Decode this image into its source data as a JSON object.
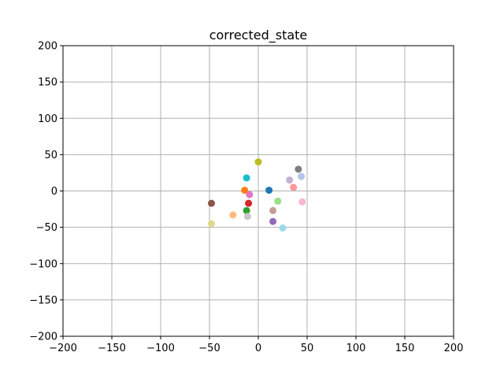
{
  "chart_data": {
    "type": "scatter",
    "title": "corrected_state",
    "xlabel": "",
    "ylabel": "",
    "xlim": [
      -200,
      200
    ],
    "ylim": [
      -200,
      200
    ],
    "xticks": [
      -200,
      -150,
      -100,
      -50,
      0,
      50,
      100,
      150,
      200
    ],
    "yticks": [
      -200,
      -150,
      -100,
      -50,
      0,
      50,
      100,
      150,
      200
    ],
    "grid": true,
    "points": [
      {
        "x": 11,
        "y": 1,
        "color": "#1f77b4"
      },
      {
        "x": -26,
        "y": -33,
        "color": "#ffbb78"
      },
      {
        "x": -14,
        "y": 1,
        "color": "#ff7f0e"
      },
      {
        "x": -12,
        "y": -27,
        "color": "#2ca02c"
      },
      {
        "x": 20,
        "y": -14,
        "color": "#98df8a"
      },
      {
        "x": -10,
        "y": -17,
        "color": "#d62728"
      },
      {
        "x": 36,
        "y": 5,
        "color": "#ff9896"
      },
      {
        "x": 15,
        "y": -42,
        "color": "#9467bd"
      },
      {
        "x": 32,
        "y": 15,
        "color": "#c5b0d5"
      },
      {
        "x": -48,
        "y": -17,
        "color": "#8c564b"
      },
      {
        "x": 15,
        "y": -27,
        "color": "#c49c94"
      },
      {
        "x": -9,
        "y": -5,
        "color": "#e377c2"
      },
      {
        "x": 45,
        "y": -15,
        "color": "#f7b6d2"
      },
      {
        "x": 41,
        "y": 30,
        "color": "#7f7f7f"
      },
      {
        "x": -11,
        "y": -35,
        "color": "#c7c7c7"
      },
      {
        "x": 0,
        "y": 40,
        "color": "#bcbd22"
      },
      {
        "x": -48,
        "y": -45,
        "color": "#dbdb8d"
      },
      {
        "x": -12,
        "y": 18,
        "color": "#17becf"
      },
      {
        "x": 25,
        "y": -51,
        "color": "#9edae5"
      },
      {
        "x": 44,
        "y": 20,
        "color": "#aec7e8"
      }
    ]
  }
}
